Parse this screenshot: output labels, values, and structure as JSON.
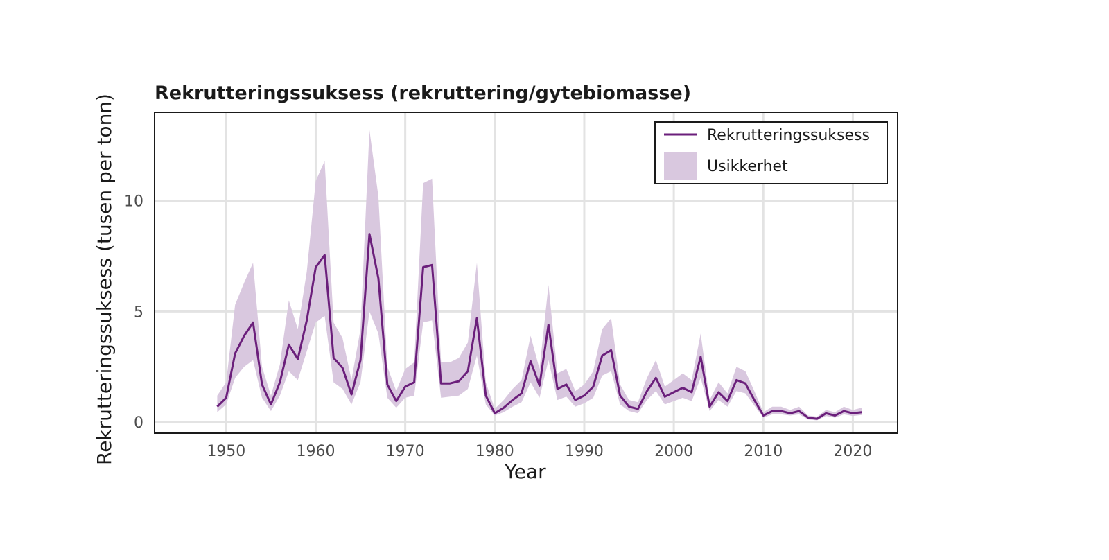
{
  "chart_data": {
    "type": "line",
    "title": "Rekrutteringssuksess (rekruttering/gytebiomasse)",
    "xlabel": "Year",
    "ylabel": "Rekrutteringssuksess (tusen per tonn)",
    "xlim": [
      1942,
      2025
    ],
    "ylim": [
      -0.5,
      14
    ],
    "x_ticks": [
      1950,
      1960,
      1970,
      1980,
      1990,
      2000,
      2010,
      2020
    ],
    "y_ticks": [
      0,
      5,
      10
    ],
    "grid": true,
    "legend_position": "top-right",
    "colors": {
      "line": "#6b1f7b",
      "band": "#d9c8df",
      "frame": "#1a1a1a",
      "grid": "#e3e3e3"
    },
    "x": [
      1949,
      1950,
      1951,
      1952,
      1953,
      1954,
      1955,
      1956,
      1957,
      1958,
      1959,
      1960,
      1961,
      1962,
      1963,
      1964,
      1965,
      1966,
      1967,
      1968,
      1969,
      1970,
      1971,
      1972,
      1973,
      1974,
      1975,
      1976,
      1977,
      1978,
      1979,
      1980,
      1981,
      1982,
      1983,
      1984,
      1985,
      1986,
      1987,
      1988,
      1989,
      1990,
      1991,
      1992,
      1993,
      1994,
      1995,
      1996,
      1997,
      1998,
      1999,
      2000,
      2001,
      2002,
      2003,
      2004,
      2005,
      2006,
      2007,
      2008,
      2009,
      2010,
      2011,
      2012,
      2013,
      2014,
      2015,
      2016,
      2017,
      2018,
      2019,
      2020,
      2021
    ],
    "series": [
      {
        "name": "Rekrutteringssuksess",
        "values": [
          0.7,
          1.1,
          3.1,
          3.9,
          4.5,
          1.7,
          0.8,
          1.8,
          3.5,
          2.85,
          4.6,
          7.0,
          7.55,
          2.9,
          2.45,
          1.25,
          2.8,
          8.5,
          6.5,
          1.7,
          0.95,
          1.6,
          1.8,
          7.0,
          7.1,
          1.75,
          1.75,
          1.85,
          2.3,
          4.7,
          1.2,
          0.4,
          0.65,
          1.0,
          1.3,
          2.75,
          1.65,
          4.4,
          1.5,
          1.7,
          1.0,
          1.2,
          1.6,
          3.0,
          3.25,
          1.2,
          0.7,
          0.6,
          1.4,
          2.0,
          1.15,
          1.35,
          1.55,
          1.35,
          2.95,
          0.7,
          1.35,
          0.95,
          1.9,
          1.75,
          1.0,
          0.3,
          0.5,
          0.5,
          0.4,
          0.5,
          0.2,
          0.15,
          0.4,
          0.3,
          0.5,
          0.4,
          0.45
        ]
      },
      {
        "name": "Usikkerhet",
        "type": "band",
        "lower": [
          0.45,
          0.8,
          2.0,
          2.5,
          2.8,
          1.1,
          0.5,
          1.2,
          2.3,
          1.9,
          3.2,
          4.5,
          4.8,
          1.8,
          1.5,
          0.8,
          1.8,
          5.0,
          4.0,
          1.1,
          0.65,
          1.1,
          1.2,
          4.5,
          4.6,
          1.1,
          1.15,
          1.2,
          1.5,
          3.0,
          0.8,
          0.3,
          0.45,
          0.7,
          0.9,
          1.8,
          1.1,
          2.8,
          1.0,
          1.15,
          0.7,
          0.85,
          1.1,
          2.1,
          2.3,
          0.8,
          0.5,
          0.4,
          1.0,
          1.4,
          0.8,
          0.95,
          1.1,
          0.95,
          2.0,
          0.5,
          1.0,
          0.7,
          1.4,
          1.3,
          0.75,
          0.2,
          0.35,
          0.35,
          0.3,
          0.35,
          0.12,
          0.08,
          0.28,
          0.2,
          0.35,
          0.28,
          0.32
        ],
        "upper": [
          1.2,
          1.8,
          5.3,
          6.3,
          7.2,
          2.5,
          1.2,
          2.6,
          5.5,
          4.2,
          6.8,
          10.9,
          11.8,
          4.5,
          3.8,
          1.9,
          4.2,
          13.2,
          10.2,
          2.5,
          1.4,
          2.4,
          2.7,
          10.8,
          11.0,
          2.7,
          2.7,
          2.9,
          3.6,
          7.2,
          1.8,
          0.6,
          1.0,
          1.5,
          1.9,
          3.9,
          2.4,
          6.2,
          2.2,
          2.4,
          1.4,
          1.7,
          2.3,
          4.2,
          4.7,
          1.7,
          1.0,
          0.9,
          2.0,
          2.8,
          1.6,
          1.9,
          2.2,
          1.9,
          4.0,
          1.0,
          1.8,
          1.3,
          2.5,
          2.3,
          1.4,
          0.45,
          0.7,
          0.7,
          0.55,
          0.7,
          0.3,
          0.25,
          0.55,
          0.45,
          0.7,
          0.55,
          0.65
        ]
      }
    ]
  }
}
